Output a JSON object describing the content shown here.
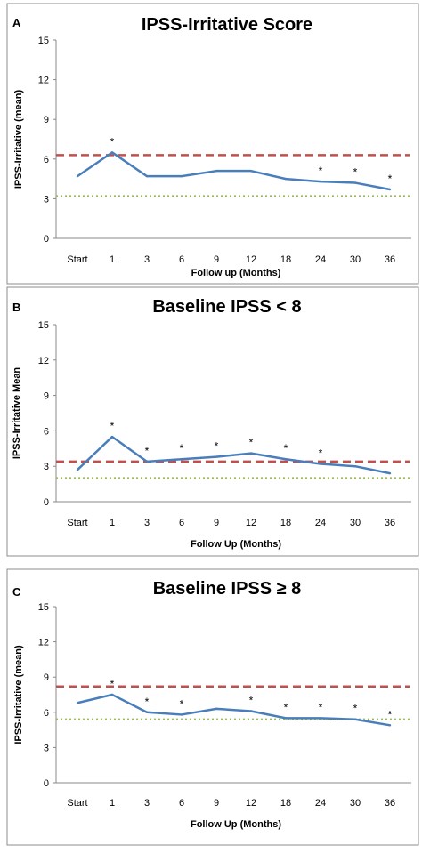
{
  "chart_data": [
    {
      "panel": "A",
      "type": "line",
      "title": "IPSS-Irritative Score",
      "xlabel": "Follow up (Months)",
      "ylabel": "IPSS-Irritative (mean)",
      "categories": [
        "Start",
        "1",
        "3",
        "6",
        "9",
        "12",
        "18",
        "24",
        "30",
        "36"
      ],
      "values": [
        4.7,
        6.5,
        4.7,
        4.7,
        5.1,
        5.1,
        4.5,
        4.3,
        4.2,
        3.7
      ],
      "significant": [
        false,
        true,
        false,
        false,
        false,
        false,
        false,
        true,
        true,
        true
      ],
      "significance_marker": "*",
      "ylim": [
        0,
        15
      ],
      "yticks": [
        0,
        3,
        6,
        9,
        12,
        15
      ],
      "reference_lines": [
        {
          "value": 6.3,
          "style": "dashed",
          "color": "#c0504d"
        },
        {
          "value": 3.2,
          "style": "dotted",
          "color": "#9bbb59"
        }
      ],
      "line_color": "#4a7ebb",
      "grid": false
    },
    {
      "panel": "B",
      "type": "line",
      "title": "Baseline IPSS < 8",
      "xlabel": "Follow Up (Months)",
      "ylabel": "IPSS-Irritative Mean",
      "categories": [
        "Start",
        "1",
        "3",
        "6",
        "9",
        "12",
        "18",
        "24",
        "30",
        "36"
      ],
      "values": [
        2.7,
        5.5,
        3.4,
        3.6,
        3.8,
        4.1,
        3.6,
        3.2,
        3.0,
        2.4
      ],
      "significant": [
        false,
        true,
        true,
        true,
        true,
        true,
        true,
        true,
        false,
        false
      ],
      "significance_marker": "*",
      "ylim": [
        0,
        15
      ],
      "yticks": [
        0,
        3,
        6,
        9,
        12,
        15
      ],
      "reference_lines": [
        {
          "value": 3.4,
          "style": "dashed",
          "color": "#c0504d"
        },
        {
          "value": 2.0,
          "style": "dotted",
          "color": "#9bbb59"
        }
      ],
      "line_color": "#4a7ebb",
      "grid": false
    },
    {
      "panel": "C",
      "type": "line",
      "title": "Baseline IPSS ≥ 8",
      "xlabel": "Follow Up (Months)",
      "ylabel": "IPSS-Irritative (mean)",
      "categories": [
        "Start",
        "1",
        "3",
        "6",
        "9",
        "12",
        "18",
        "24",
        "30",
        "36"
      ],
      "values": [
        6.8,
        7.5,
        6.0,
        5.8,
        6.3,
        6.1,
        5.5,
        5.5,
        5.4,
        4.9
      ],
      "significant": [
        false,
        true,
        true,
        true,
        false,
        true,
        true,
        true,
        true,
        true
      ],
      "significance_marker": "*",
      "ylim": [
        0,
        15
      ],
      "yticks": [
        0,
        3,
        6,
        9,
        12,
        15
      ],
      "reference_lines": [
        {
          "value": 8.2,
          "style": "dashed",
          "color": "#c0504d"
        },
        {
          "value": 5.4,
          "style": "dotted",
          "color": "#9bbb59"
        }
      ],
      "line_color": "#4a7ebb",
      "grid": false
    }
  ]
}
